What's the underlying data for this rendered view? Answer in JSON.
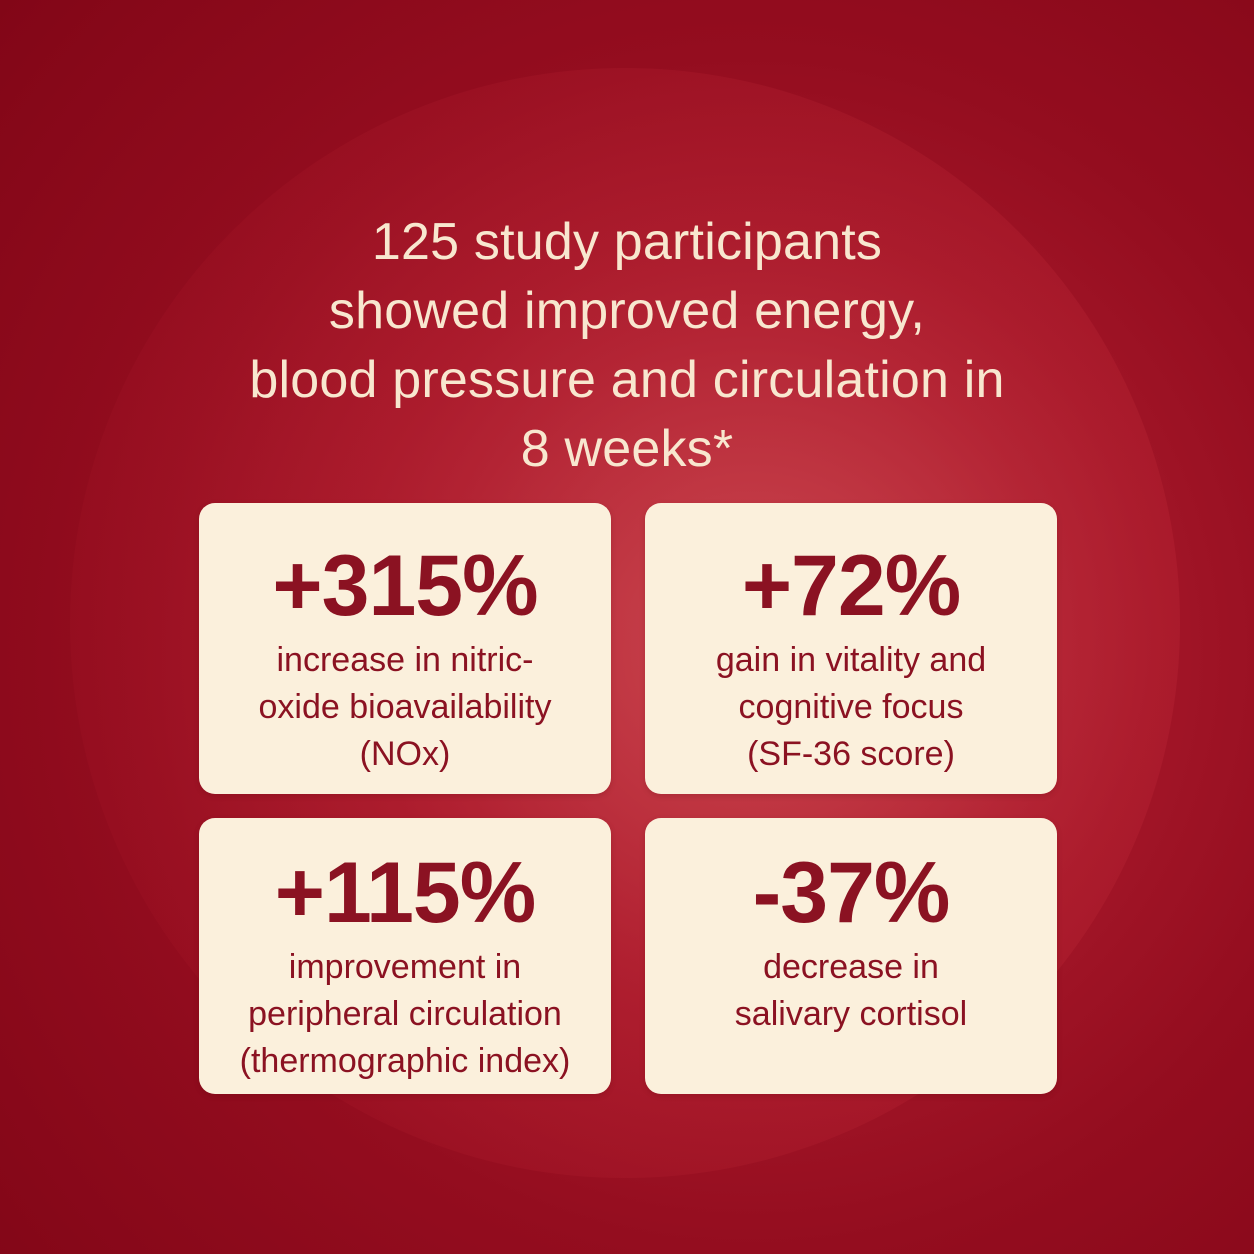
{
  "headline": {
    "lines": [
      "125 study participants",
      "showed improved energy,",
      "blood pressure and circulation in",
      "8 weeks*"
    ]
  },
  "cards": [
    {
      "value": "+315%",
      "lines": [
        "increase in nitric-",
        "oxide bioavailability",
        "(NOx)"
      ]
    },
    {
      "value": "+72%",
      "lines": [
        "gain in vitality and",
        "cognitive focus",
        "(SF-36 score)"
      ]
    },
    {
      "value": "+115%",
      "lines": [
        "improvement in",
        "peripheral circulation",
        "(thermographic index)"
      ]
    },
    {
      "value": "-37%",
      "lines": [
        "decrease in",
        "salivary cortisol"
      ]
    }
  ],
  "colors": {
    "background": "#a8192b",
    "card": "#fbf0dc",
    "stat_text": "#8b1222",
    "headline_text": "#f8e7cf"
  }
}
